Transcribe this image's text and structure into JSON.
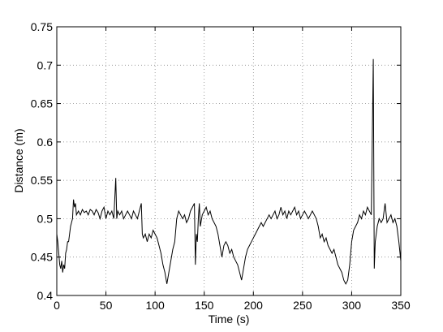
{
  "chart_data": {
    "type": "line",
    "xlabel": "Time (s)",
    "ylabel": "Distance (m)",
    "x": [
      0,
      1,
      2,
      3,
      4,
      5,
      6,
      7,
      8,
      9,
      10,
      11,
      12,
      13,
      14,
      15,
      16,
      17,
      18,
      19,
      20,
      22,
      24,
      26,
      28,
      30,
      32,
      34,
      36,
      38,
      40,
      42,
      44,
      46,
      48,
      50,
      52,
      54,
      56,
      58,
      60,
      61,
      62,
      64,
      66,
      68,
      70,
      72,
      74,
      76,
      78,
      80,
      82,
      84,
      86,
      87,
      88,
      90,
      92,
      94,
      96,
      98,
      100,
      102,
      104,
      106,
      108,
      110,
      112,
      114,
      116,
      118,
      120,
      122,
      124,
      126,
      128,
      130,
      132,
      134,
      136,
      138,
      140,
      141,
      142,
      143,
      144,
      145,
      146,
      148,
      150,
      152,
      154,
      156,
      158,
      160,
      162,
      164,
      166,
      168,
      170,
      172,
      174,
      176,
      178,
      180,
      182,
      184,
      186,
      188,
      190,
      192,
      194,
      196,
      198,
      200,
      202,
      204,
      206,
      208,
      210,
      212,
      214,
      216,
      218,
      220,
      222,
      224,
      226,
      228,
      230,
      232,
      234,
      236,
      238,
      240,
      242,
      244,
      246,
      248,
      250,
      252,
      254,
      256,
      258,
      260,
      262,
      264,
      266,
      268,
      270,
      272,
      274,
      276,
      278,
      280,
      282,
      284,
      286,
      288,
      290,
      292,
      294,
      296,
      298,
      300,
      302,
      304,
      306,
      308,
      310,
      312,
      314,
      316,
      318,
      320,
      322,
      323,
      324,
      326,
      328,
      330,
      332,
      334,
      336,
      338,
      340,
      342,
      344,
      346,
      348,
      350
    ],
    "series": [
      {
        "name": "distance",
        "color": "#000000",
        "values": [
          0.48,
          0.47,
          0.455,
          0.44,
          0.435,
          0.445,
          0.43,
          0.44,
          0.435,
          0.455,
          0.46,
          0.47,
          0.47,
          0.48,
          0.49,
          0.495,
          0.5,
          0.525,
          0.515,
          0.52,
          0.505,
          0.51,
          0.505,
          0.512,
          0.508,
          0.51,
          0.505,
          0.512,
          0.51,
          0.505,
          0.512,
          0.508,
          0.5,
          0.51,
          0.515,
          0.5,
          0.51,
          0.505,
          0.51,
          0.5,
          0.553,
          0.5,
          0.51,
          0.505,
          0.51,
          0.5,
          0.505,
          0.51,
          0.505,
          0.5,
          0.51,
          0.505,
          0.5,
          0.51,
          0.52,
          0.48,
          0.475,
          0.48,
          0.47,
          0.48,
          0.475,
          0.485,
          0.48,
          0.475,
          0.465,
          0.455,
          0.44,
          0.43,
          0.415,
          0.43,
          0.445,
          0.46,
          0.47,
          0.5,
          0.51,
          0.505,
          0.5,
          0.505,
          0.495,
          0.5,
          0.51,
          0.515,
          0.52,
          0.44,
          0.48,
          0.47,
          0.5,
          0.52,
          0.49,
          0.505,
          0.51,
          0.515,
          0.505,
          0.51,
          0.5,
          0.495,
          0.49,
          0.48,
          0.465,
          0.45,
          0.465,
          0.47,
          0.465,
          0.455,
          0.46,
          0.45,
          0.445,
          0.44,
          0.43,
          0.42,
          0.435,
          0.45,
          0.46,
          0.465,
          0.47,
          0.475,
          0.48,
          0.485,
          0.49,
          0.495,
          0.49,
          0.495,
          0.5,
          0.505,
          0.5,
          0.505,
          0.51,
          0.5,
          0.505,
          0.515,
          0.505,
          0.51,
          0.5,
          0.51,
          0.505,
          0.51,
          0.515,
          0.505,
          0.51,
          0.5,
          0.505,
          0.51,
          0.505,
          0.5,
          0.505,
          0.51,
          0.505,
          0.5,
          0.49,
          0.475,
          0.48,
          0.47,
          0.475,
          0.465,
          0.46,
          0.455,
          0.46,
          0.45,
          0.44,
          0.435,
          0.43,
          0.42,
          0.415,
          0.42,
          0.44,
          0.47,
          0.485,
          0.49,
          0.495,
          0.505,
          0.5,
          0.51,
          0.505,
          0.515,
          0.51,
          0.505,
          0.708,
          0.435,
          0.47,
          0.49,
          0.5,
          0.495,
          0.5,
          0.52,
          0.495,
          0.5,
          0.505,
          0.495,
          0.5,
          0.49,
          0.47,
          0.445
        ]
      }
    ],
    "xlim": [
      0,
      350
    ],
    "ylim": [
      0.4,
      0.75
    ],
    "xticks": [
      0,
      50,
      100,
      150,
      200,
      250,
      300,
      350
    ],
    "yticks": [
      0.4,
      0.45,
      0.5,
      0.55,
      0.6,
      0.65,
      0.7,
      0.75
    ],
    "grid": true
  }
}
